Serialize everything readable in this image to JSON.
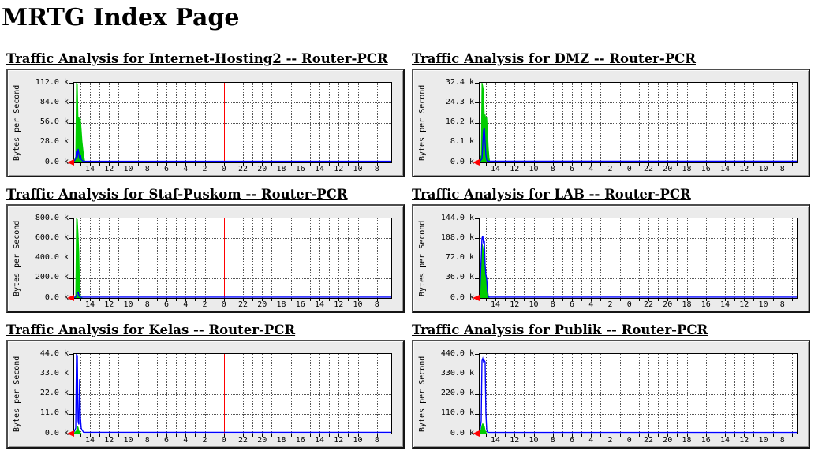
{
  "page": {
    "title": "MRTG Index Page"
  },
  "colors": {
    "green_area": "#00cc00",
    "blue_line": "#0000ff",
    "midnight_marker": "#ff0000",
    "axis_arrow": "#ff0000",
    "graph_background": "#ebebeb",
    "plot_background": "#ffffff"
  },
  "chart_data": [
    {
      "type": "area",
      "title": "Traffic Analysis for Internet-Hosting2 -- Router-PCR",
      "ylabel": "Bytes per Second",
      "ymax": 112,
      "ylim": [
        0,
        112
      ],
      "y_ticks": [
        "112.0 k",
        "84.0 k",
        "56.0 k",
        "28.0 k",
        "0.0 k"
      ],
      "x_labels": [
        "14",
        "12",
        "10",
        "8",
        "6",
        "4",
        "2",
        "0",
        "22",
        "20",
        "18",
        "16",
        "14",
        "12",
        "10",
        "8"
      ],
      "grid": true,
      "midnight_marker_at_label": "0",
      "series": [
        {
          "name": "green-area-series",
          "style": "area",
          "color": "#00cc00",
          "points": [
            [
              0,
              2
            ],
            [
              2,
              8
            ],
            [
              3,
              112
            ],
            [
              4,
              110
            ],
            [
              5,
              56
            ],
            [
              6,
              64
            ],
            [
              7,
              58
            ],
            [
              8,
              60
            ],
            [
              9,
              46
            ],
            [
              10,
              30
            ],
            [
              11,
              20
            ],
            [
              12,
              10
            ],
            [
              13,
              4
            ],
            [
              14,
              0
            ]
          ]
        },
        {
          "name": "blue-line-series",
          "style": "line",
          "color": "#0000ff",
          "points": [
            [
              0,
              2
            ],
            [
              2,
              5
            ],
            [
              3,
              16
            ],
            [
              4,
              7
            ],
            [
              5,
              19
            ],
            [
              6,
              13
            ],
            [
              7,
              5
            ],
            [
              8,
              11
            ],
            [
              9,
              4
            ],
            [
              11,
              2
            ],
            [
              13,
              1.5
            ],
            [
              404,
              1.5
            ]
          ]
        }
      ]
    },
    {
      "type": "area",
      "title": "Traffic Analysis for DMZ -- Router-PCR",
      "ylabel": "Bytes per Second",
      "ymax": 32.4,
      "ylim": [
        0,
        32.4
      ],
      "y_ticks": [
        "32.4 k",
        "24.3 k",
        "16.2 k",
        "8.1 k",
        "0.0 k"
      ],
      "x_labels": [
        "14",
        "12",
        "10",
        "8",
        "6",
        "4",
        "2",
        "0",
        "22",
        "20",
        "18",
        "16",
        "14",
        "12",
        "10",
        "8"
      ],
      "grid": true,
      "midnight_marker_at_label": "0",
      "series": [
        {
          "name": "green-area-series",
          "style": "area",
          "color": "#00cc00",
          "points": [
            [
              0,
              0.5
            ],
            [
              2,
              3
            ],
            [
              3,
              32.4
            ],
            [
              4,
              31
            ],
            [
              5,
              29
            ],
            [
              6,
              18
            ],
            [
              7,
              19.5
            ],
            [
              8,
              17
            ],
            [
              9,
              18.5
            ],
            [
              10,
              13
            ],
            [
              11,
              6
            ],
            [
              12,
              2
            ],
            [
              13,
              0
            ]
          ]
        },
        {
          "name": "blue-line-series",
          "style": "line",
          "color": "#0000ff",
          "points": [
            [
              0,
              0.3
            ],
            [
              3,
              1.5
            ],
            [
              5,
              13
            ],
            [
              6,
              14
            ],
            [
              7,
              8
            ],
            [
              8,
              3
            ],
            [
              9,
              1
            ],
            [
              10,
              0.5
            ],
            [
              404,
              0.5
            ]
          ]
        }
      ]
    },
    {
      "type": "area",
      "title": "Traffic Analysis for Staf-Puskom -- Router-PCR",
      "ylabel": "Bytes per Second",
      "ymax": 800,
      "ylim": [
        0,
        800
      ],
      "y_ticks": [
        "800.0 k",
        "600.0 k",
        "400.0 k",
        "200.0 k",
        "0.0 k"
      ],
      "x_labels": [
        "14",
        "12",
        "10",
        "8",
        "6",
        "4",
        "2",
        "0",
        "22",
        "20",
        "18",
        "16",
        "14",
        "12",
        "10",
        "8"
      ],
      "grid": true,
      "midnight_marker_at_label": "0",
      "series": [
        {
          "name": "green-area-series",
          "style": "area",
          "color": "#00cc00",
          "points": [
            [
              0,
              4
            ],
            [
              2,
              20
            ],
            [
              3,
              795
            ],
            [
              4,
              790
            ],
            [
              5,
              640
            ],
            [
              6,
              450
            ],
            [
              7,
              70
            ],
            [
              8,
              25
            ],
            [
              9,
              8
            ],
            [
              10,
              0
            ]
          ]
        },
        {
          "name": "blue-line-series",
          "style": "line",
          "color": "#0000ff",
          "points": [
            [
              0,
              4
            ],
            [
              2,
              12
            ],
            [
              4,
              52
            ],
            [
              5,
              58
            ],
            [
              6,
              28
            ],
            [
              7,
              12
            ],
            [
              9,
              9
            ],
            [
              404,
              9
            ]
          ]
        }
      ]
    },
    {
      "type": "area",
      "title": "Traffic Analysis for LAB -- Router-PCR",
      "ylabel": "Bytes per Second",
      "ymax": 144,
      "ylim": [
        0,
        144
      ],
      "y_ticks": [
        "144.0 k",
        "108.0 k",
        "72.0 k",
        "36.0 k",
        "0.0 k"
      ],
      "x_labels": [
        "14",
        "12",
        "10",
        "8",
        "6",
        "4",
        "2",
        "0",
        "22",
        "20",
        "18",
        "16",
        "14",
        "12",
        "10",
        "8"
      ],
      "grid": true,
      "midnight_marker_at_label": "0",
      "series": [
        {
          "name": "green-area-series",
          "style": "area",
          "color": "#00cc00",
          "points": [
            [
              0,
              2
            ],
            [
              2,
              62
            ],
            [
              3,
              98
            ],
            [
              4,
              93
            ],
            [
              5,
              80
            ],
            [
              6,
              77
            ],
            [
              7,
              50
            ],
            [
              8,
              38
            ],
            [
              9,
              33
            ],
            [
              10,
              12
            ],
            [
              11,
              3
            ],
            [
              12,
              0
            ]
          ]
        },
        {
          "name": "blue-line-series",
          "style": "line",
          "color": "#0000ff",
          "points": [
            [
              0,
              2
            ],
            [
              2,
              72
            ],
            [
              3,
              108
            ],
            [
              4,
              112
            ],
            [
              5,
              99
            ],
            [
              6,
              103
            ],
            [
              7,
              60
            ],
            [
              8,
              42
            ],
            [
              9,
              35
            ],
            [
              10,
              13
            ],
            [
              11,
              3
            ],
            [
              12,
              1.5
            ],
            [
              404,
              1.5
            ]
          ]
        }
      ]
    },
    {
      "type": "area",
      "title": "Traffic Analysis for Kelas -- Router-PCR",
      "ylabel": "Bytes per Second",
      "ymax": 44,
      "ylim": [
        0,
        44
      ],
      "y_ticks": [
        "44.0 k",
        "33.0 k",
        "22.0 k",
        "11.0 k",
        "0.0 k"
      ],
      "x_labels": [
        "14",
        "12",
        "10",
        "8",
        "6",
        "4",
        "2",
        "0",
        "22",
        "20",
        "18",
        "16",
        "14",
        "12",
        "10",
        "8"
      ],
      "grid": true,
      "midnight_marker_at_label": "0",
      "series": [
        {
          "name": "green-area-series",
          "style": "area",
          "color": "#00cc00",
          "points": [
            [
              0,
              0.3
            ],
            [
              3,
              1.5
            ],
            [
              4,
              4
            ],
            [
              5,
              3.5
            ],
            [
              6,
              1.5
            ],
            [
              8,
              0.5
            ],
            [
              9,
              0
            ]
          ]
        },
        {
          "name": "blue-line-series",
          "style": "line",
          "color": "#0000ff",
          "points": [
            [
              0,
              1
            ],
            [
              2,
              3
            ],
            [
              3,
              44
            ],
            [
              4,
              43
            ],
            [
              5,
              7
            ],
            [
              6,
              5
            ],
            [
              7,
              30
            ],
            [
              8,
              9
            ],
            [
              9,
              3
            ],
            [
              10,
              2
            ],
            [
              12,
              0.7
            ],
            [
              404,
              0.7
            ]
          ]
        }
      ]
    },
    {
      "type": "area",
      "title": "Traffic Analysis for Publik -- Router-PCR",
      "ylabel": "Bytes per Second",
      "ymax": 440,
      "ylim": [
        0,
        440
      ],
      "y_ticks": [
        "440.0 k",
        "330.0 k",
        "220.0 k",
        "110.0 k",
        "0.0 k"
      ],
      "x_labels": [
        "14",
        "12",
        "10",
        "8",
        "6",
        "4",
        "2",
        "0",
        "22",
        "20",
        "18",
        "16",
        "14",
        "12",
        "10",
        "8"
      ],
      "grid": true,
      "midnight_marker_at_label": "0",
      "series": [
        {
          "name": "green-area-series",
          "style": "area",
          "color": "#00cc00",
          "points": [
            [
              0,
              3
            ],
            [
              2,
              22
            ],
            [
              3,
              46
            ],
            [
              4,
              55
            ],
            [
              5,
              47
            ],
            [
              6,
              40
            ],
            [
              7,
              18
            ],
            [
              8,
              6
            ],
            [
              9,
              0
            ]
          ]
        },
        {
          "name": "blue-line-series",
          "style": "line",
          "color": "#0000ff",
          "points": [
            [
              0,
              4
            ],
            [
              2,
              70
            ],
            [
              3,
              402
            ],
            [
              4,
              415
            ],
            [
              5,
              397
            ],
            [
              6,
              403
            ],
            [
              7,
              396
            ],
            [
              8,
              108
            ],
            [
              9,
              22
            ],
            [
              10,
              8
            ],
            [
              12,
              6
            ],
            [
              404,
              6
            ]
          ]
        }
      ]
    }
  ]
}
